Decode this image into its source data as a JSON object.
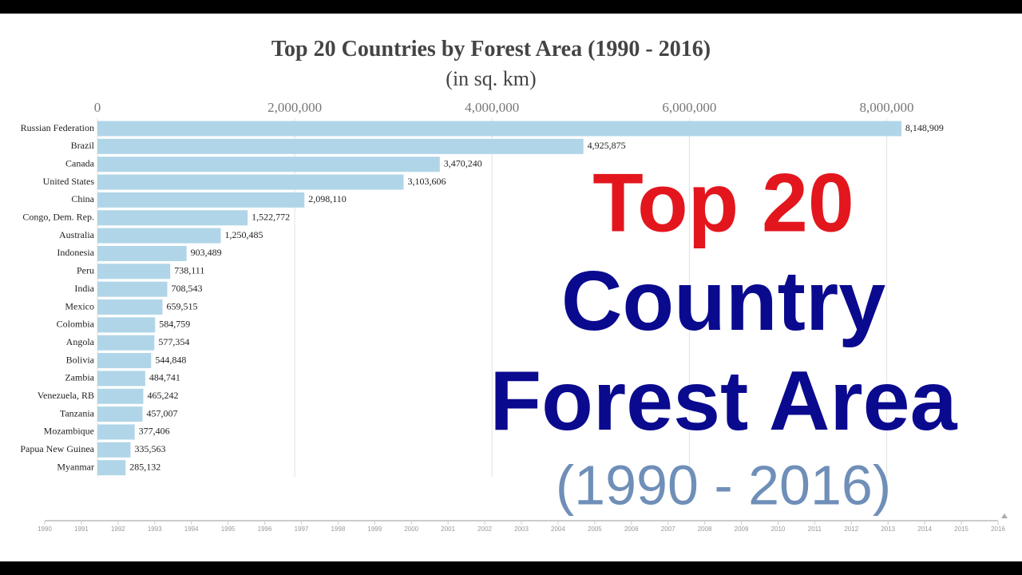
{
  "chart_data": {
    "type": "bar",
    "orientation": "horizontal",
    "title": "Top 20 Countries by Forest Area (1990 - 2016)",
    "subtitle": "(in sq. km)",
    "categories": [
      "Russian Federation",
      "Brazil",
      "Canada",
      "United States",
      "China",
      "Congo, Dem. Rep.",
      "Australia",
      "Indonesia",
      "Peru",
      "India",
      "Mexico",
      "Colombia",
      "Angola",
      "Bolivia",
      "Zambia",
      "Venezuela, RB",
      "Tanzania",
      "Mozambique",
      "Papua New Guinea",
      "Myanmar"
    ],
    "values": [
      8148909,
      4925875,
      3470240,
      3103606,
      2098110,
      1522772,
      1250485,
      903489,
      738111,
      708543,
      659515,
      584759,
      577354,
      544848,
      484741,
      465242,
      457007,
      377406,
      335563,
      285132
    ],
    "value_labels": [
      "8,148,909",
      "4,925,875",
      "3,470,240",
      "3,103,606",
      "2,098,110",
      "1,522,772",
      "1,250,485",
      "903,489",
      "738,111",
      "708,543",
      "659,515",
      "584,759",
      "577,354",
      "544,848",
      "484,741",
      "465,242",
      "457,007",
      "377,406",
      "335,563",
      "285,132"
    ],
    "color": "#b0d5e8",
    "xlim": [
      0,
      8200000
    ],
    "xticks": [
      0,
      {
        "value": 2000000,
        "label": "2,000,000"
      },
      {
        "value": 4000000,
        "label": "4,000,000"
      },
      {
        "value": 6000000,
        "label": "6,000,000"
      },
      {
        "value": 8000000,
        "label": "8,000,000"
      }
    ],
    "grid": true,
    "annotations": [
      "Top 20",
      "Country",
      "Forest Area",
      "(1990 - 2016)"
    ],
    "timeline_years": [
      1990,
      1991,
      1992,
      1993,
      1994,
      1995,
      1996,
      1997,
      1998,
      1999,
      2000,
      2001,
      2002,
      2003,
      2004,
      2005,
      2006,
      2007,
      2008,
      2009,
      2010,
      2011,
      2012,
      2013,
      2014,
      2015,
      2016
    ]
  }
}
